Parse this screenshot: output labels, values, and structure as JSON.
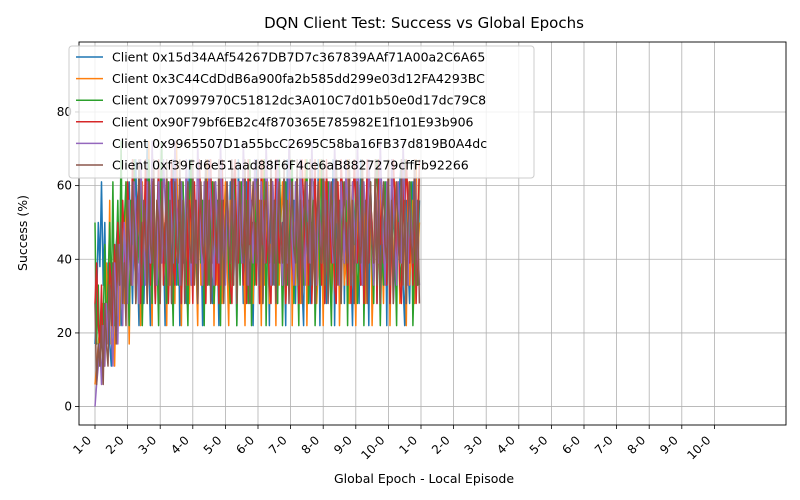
{
  "chart_data": {
    "type": "line",
    "title": "DQN Client Test: Success vs Global Epochs",
    "xlabel": "Global Epoch - Local Episode",
    "ylabel": "Success (%)",
    "ylim": [
      -5,
      99
    ],
    "yticks": [
      0,
      20,
      40,
      60,
      80
    ],
    "xticks": [
      "1-0",
      "2-0",
      "3-0",
      "4-0",
      "5-0",
      "6-0",
      "7-0",
      "8-0",
      "9-0",
      "10-0",
      "1-0",
      "2-0",
      "3-0",
      "4-0",
      "5-0",
      "6-0",
      "7-0",
      "8-0",
      "9-0",
      "10-0"
    ],
    "episodes_per_tick": 20,
    "grid": true,
    "legend_position": "top-left",
    "colors": [
      "#1f77b4",
      "#ff7f0e",
      "#2ca02c",
      "#d62728",
      "#9467bd",
      "#8c564b"
    ],
    "series": [
      {
        "name": "Client 0x15d34AAf54267DB7D7c367839AAf71A00a2C6A65",
        "values": [
          17,
          27,
          50,
          38,
          61,
          33,
          50,
          22,
          39,
          17,
          11,
          33,
          28,
          44,
          50,
          39,
          22,
          28,
          44,
          56,
          33,
          61,
          44,
          28,
          50,
          67,
          39,
          22,
          44,
          56,
          28,
          50,
          72,
          39,
          22,
          61,
          44,
          28,
          50,
          67,
          33,
          56,
          44,
          22,
          61,
          39,
          50,
          28,
          67,
          44,
          33,
          56,
          22,
          61,
          39,
          44,
          28,
          50,
          67,
          33,
          44,
          56,
          39,
          28,
          61,
          50,
          22,
          44,
          67,
          33,
          56,
          39,
          28,
          50,
          61,
          44,
          22,
          67,
          33,
          56,
          39,
          50,
          28,
          61,
          44,
          33,
          56,
          22,
          67,
          39,
          50,
          28,
          44,
          61,
          33,
          56,
          39,
          22,
          50,
          67,
          44,
          28,
          61,
          33,
          56,
          39,
          50,
          22,
          67,
          44,
          33,
          61,
          28,
          56,
          39,
          50,
          44,
          22,
          67,
          33,
          61,
          39,
          56,
          28,
          50,
          44,
          67,
          33,
          22,
          61,
          39,
          56,
          28,
          50,
          44,
          61,
          33,
          67,
          22,
          56,
          39,
          50,
          28,
          61,
          44,
          33,
          67,
          22,
          56,
          39,
          50,
          44,
          61,
          28,
          67,
          33,
          56,
          39,
          22,
          50,
          44,
          61,
          28,
          67,
          33,
          56,
          39,
          50,
          22,
          61,
          44,
          33,
          67,
          28,
          56,
          39,
          50,
          44,
          61,
          22,
          67,
          33,
          56,
          28,
          39,
          50,
          44,
          61,
          67,
          33,
          22,
          56,
          39,
          28,
          50,
          61,
          44,
          67,
          33,
          56
        ]
      },
      {
        "name": "Client 0x3C44CdDdB6a900fa2b585dd299e03d12FA4293BC",
        "values": [
          6,
          11,
          17,
          22,
          17,
          28,
          11,
          39,
          22,
          56,
          17,
          28,
          11,
          33,
          44,
          22,
          56,
          39,
          28,
          61,
          44,
          17,
          50,
          33,
          67,
          28,
          44,
          56,
          22,
          61,
          39,
          50,
          28,
          72,
          44,
          22,
          61,
          33,
          56,
          39,
          28,
          67,
          44,
          50,
          22,
          61,
          33,
          56,
          39,
          28,
          72,
          44,
          50,
          22,
          61,
          39,
          33,
          56,
          28,
          67,
          44,
          50,
          39,
          22,
          61,
          33,
          56,
          44,
          28,
          67,
          50,
          39,
          61,
          22,
          56,
          33,
          44,
          67,
          28,
          50,
          61,
          39,
          22,
          56,
          44,
          33,
          67,
          28,
          50,
          61,
          39,
          44,
          22,
          56,
          33,
          67,
          50,
          28,
          61,
          39,
          44,
          56,
          22,
          67,
          33,
          50,
          61,
          28,
          44,
          39,
          56,
          22,
          67,
          33,
          50,
          61,
          44,
          28,
          39,
          56,
          67,
          22,
          50,
          33,
          61,
          44,
          28,
          56,
          39,
          67,
          22,
          50,
          61,
          33,
          44,
          56,
          28,
          39,
          67,
          50,
          22,
          61,
          44,
          33,
          56,
          28,
          39,
          67,
          50,
          61,
          22,
          44,
          56,
          33,
          39,
          67,
          28,
          50,
          61,
          44,
          22,
          56,
          39,
          33,
          67,
          50,
          28,
          61,
          44,
          56,
          22,
          39,
          67,
          33,
          50,
          61,
          44,
          28,
          56,
          39,
          67,
          22,
          50,
          33,
          61,
          44,
          56,
          28,
          39,
          67,
          50,
          22,
          61,
          33,
          44,
          56,
          28,
          67,
          39,
          50
        ]
      },
      {
        "name": "Client 0x70997970C51812dc3A010C7d01b50e0d17dc79C8",
        "values": [
          50,
          17,
          33,
          11,
          28,
          22,
          44,
          17,
          33,
          50,
          28,
          61,
          22,
          39,
          56,
          33,
          72,
          28,
          50,
          61,
          39,
          22,
          56,
          44,
          67,
          28,
          50,
          39,
          61,
          22,
          44,
          56,
          33,
          67,
          50,
          28,
          61,
          39,
          44,
          22,
          56,
          72,
          33,
          50,
          28,
          61,
          44,
          39,
          22,
          67,
          56,
          33,
          50,
          28,
          61,
          44,
          39,
          22,
          56,
          67,
          33,
          50,
          44,
          28,
          61,
          39,
          56,
          22,
          67,
          44,
          33,
          50,
          61,
          28,
          39,
          56,
          44,
          22,
          67,
          33,
          50,
          61,
          39,
          28,
          56,
          44,
          67,
          22,
          50,
          33,
          61,
          39,
          44,
          56,
          28,
          67,
          22,
          50,
          33,
          61,
          44,
          39,
          56,
          28,
          67,
          22,
          50,
          44,
          33,
          61,
          39,
          56,
          28,
          67,
          50,
          22,
          44,
          61,
          33,
          39,
          56,
          67,
          28,
          50,
          44,
          22,
          61,
          39,
          33,
          56,
          67,
          28,
          50,
          44,
          61,
          22,
          39,
          56,
          33,
          67,
          50,
          28,
          44,
          61,
          39,
          22,
          56,
          33,
          67,
          50,
          44,
          28,
          61,
          39,
          56,
          22,
          67,
          33,
          50,
          44,
          61,
          28,
          39,
          56,
          67,
          22,
          50,
          33,
          44,
          61,
          39,
          28,
          56,
          67,
          50,
          22,
          44,
          33,
          61,
          39,
          56,
          28,
          67,
          50,
          44,
          22,
          61,
          33,
          39,
          56,
          67,
          28,
          50,
          44,
          61,
          22,
          39,
          56,
          33,
          67
        ]
      },
      {
        "name": "Client 0x90F79bf6EB2c4f870365E785982E1f101E93b906",
        "values": [
          28,
          39,
          22,
          17,
          33,
          11,
          22,
          28,
          17,
          39,
          33,
          22,
          44,
          28,
          50,
          39,
          33,
          56,
          44,
          28,
          61,
          50,
          39,
          67,
          44,
          33,
          56,
          61,
          28,
          50,
          44,
          67,
          39,
          56,
          33,
          61,
          50,
          28,
          44,
          67,
          39,
          56,
          33,
          50,
          61,
          28,
          44,
          67,
          39,
          33,
          56,
          50,
          61,
          28,
          44,
          39,
          67,
          33,
          56,
          50,
          28,
          61,
          44,
          39,
          67,
          56,
          33,
          50,
          28,
          61,
          44,
          67,
          39,
          56,
          33,
          50,
          28,
          61,
          67,
          44,
          39,
          56,
          50,
          33,
          28,
          61,
          67,
          44,
          39,
          56,
          50,
          33,
          61,
          28,
          67,
          44,
          56,
          39,
          50,
          33,
          61,
          28,
          67,
          44,
          56,
          39,
          50,
          33,
          28,
          61,
          44,
          67,
          56,
          39,
          50,
          33,
          61,
          28,
          44,
          67,
          56,
          39,
          33,
          50,
          61,
          28,
          44,
          67,
          56,
          39,
          50,
          33,
          61,
          28,
          44,
          67,
          39,
          56,
          50,
          33,
          61,
          28,
          67,
          44,
          56,
          39,
          50,
          33,
          28,
          61,
          44,
          67,
          56,
          39,
          50,
          33,
          61,
          28,
          44,
          67,
          56,
          39,
          50,
          33,
          61,
          28,
          44,
          67,
          39,
          56,
          50,
          33,
          61,
          28,
          67,
          44,
          56,
          39,
          50,
          33,
          61,
          28,
          44,
          67,
          56,
          39,
          50,
          33,
          28,
          61,
          44,
          67,
          56,
          39,
          50,
          33,
          61,
          28,
          44,
          67
        ]
      },
      {
        "name": "Client 0x9965507D1a55bcC2695C58ba16FB37d819B0A4dc",
        "values": [
          0,
          6,
          11,
          17,
          6,
          22,
          11,
          28,
          17,
          33,
          22,
          11,
          39,
          28,
          17,
          44,
          33,
          22,
          50,
          39,
          28,
          56,
          44,
          33,
          61,
          50,
          39,
          28,
          67,
          56,
          44,
          33,
          61,
          50,
          39,
          72,
          56,
          44,
          33,
          61,
          50,
          39,
          67,
          56,
          44,
          33,
          61,
          50,
          39,
          72,
          56,
          44,
          33,
          61,
          50,
          39,
          67,
          56,
          44,
          33,
          61,
          50,
          39,
          72,
          56,
          44,
          33,
          61,
          50,
          39,
          67,
          56,
          44,
          33,
          61,
          50,
          39,
          72,
          56,
          44,
          33,
          61,
          50,
          39,
          67,
          56,
          44,
          33,
          61,
          50,
          39,
          72,
          56,
          44,
          33,
          61,
          50,
          39,
          67,
          56,
          44,
          33,
          61,
          50,
          39,
          72,
          56,
          44,
          33,
          61,
          50,
          39,
          67,
          56,
          44,
          33,
          61,
          50,
          39,
          72,
          56,
          44,
          33,
          61,
          50,
          39,
          67,
          56,
          44,
          33,
          61,
          50,
          39,
          72,
          56,
          44,
          33,
          61,
          50,
          39,
          67,
          56,
          44,
          33,
          61,
          50,
          39,
          72,
          56,
          44,
          33,
          61,
          50,
          39,
          67,
          56,
          44,
          33,
          61,
          50,
          39,
          72,
          56,
          44,
          33,
          61,
          50,
          39,
          67,
          56,
          44,
          33,
          61,
          50,
          39,
          72,
          56,
          44,
          33,
          61,
          50,
          39,
          67,
          56,
          44,
          33,
          61,
          50,
          39,
          72,
          56,
          44,
          33,
          61,
          50,
          39,
          67,
          56,
          44,
          33
        ]
      },
      {
        "name": "Client 0xf39Fd6e51aad88F6F4ce6aB8827279cffFb92266",
        "values": [
          28,
          6,
          17,
          11,
          22,
          6,
          28,
          17,
          11,
          33,
          22,
          39,
          28,
          17,
          44,
          33,
          50,
          28,
          39,
          22,
          56,
          44,
          33,
          61,
          50,
          28,
          44,
          67,
          39,
          33,
          56,
          50,
          28,
          61,
          44,
          39,
          67,
          33,
          56,
          50,
          28,
          61,
          44,
          39,
          67,
          33,
          56,
          28,
          50,
          61,
          44,
          39,
          67,
          33,
          56,
          28,
          50,
          61,
          44,
          39,
          67,
          33,
          56,
          28,
          50,
          61,
          44,
          39,
          67,
          33,
          56,
          28,
          50,
          61,
          44,
          39,
          67,
          33,
          56,
          28,
          50,
          61,
          44,
          39,
          67,
          33,
          56,
          28,
          50,
          61,
          44,
          39,
          67,
          33,
          56,
          28,
          50,
          61,
          44,
          39,
          67,
          33,
          56,
          28,
          50,
          61,
          44,
          39,
          67,
          33,
          56,
          28,
          50,
          61,
          44,
          39,
          67,
          33,
          56,
          28,
          50,
          61,
          44,
          39,
          67,
          33,
          56,
          28,
          50,
          61,
          44,
          39,
          67,
          33,
          56,
          28,
          50,
          61,
          44,
          39,
          67,
          33,
          56,
          28,
          50,
          61,
          44,
          39,
          67,
          33,
          56,
          28,
          50,
          61,
          44,
          39,
          67,
          33,
          56,
          28,
          50,
          61,
          44,
          39,
          67,
          33,
          56,
          28,
          50,
          61,
          44,
          39,
          67,
          33,
          56,
          28,
          50,
          61,
          44,
          39,
          67,
          33,
          56,
          28,
          50,
          61,
          44,
          39,
          67,
          33,
          56,
          28,
          50,
          61,
          44,
          39,
          67,
          33,
          56,
          28
        ]
      }
    ]
  }
}
